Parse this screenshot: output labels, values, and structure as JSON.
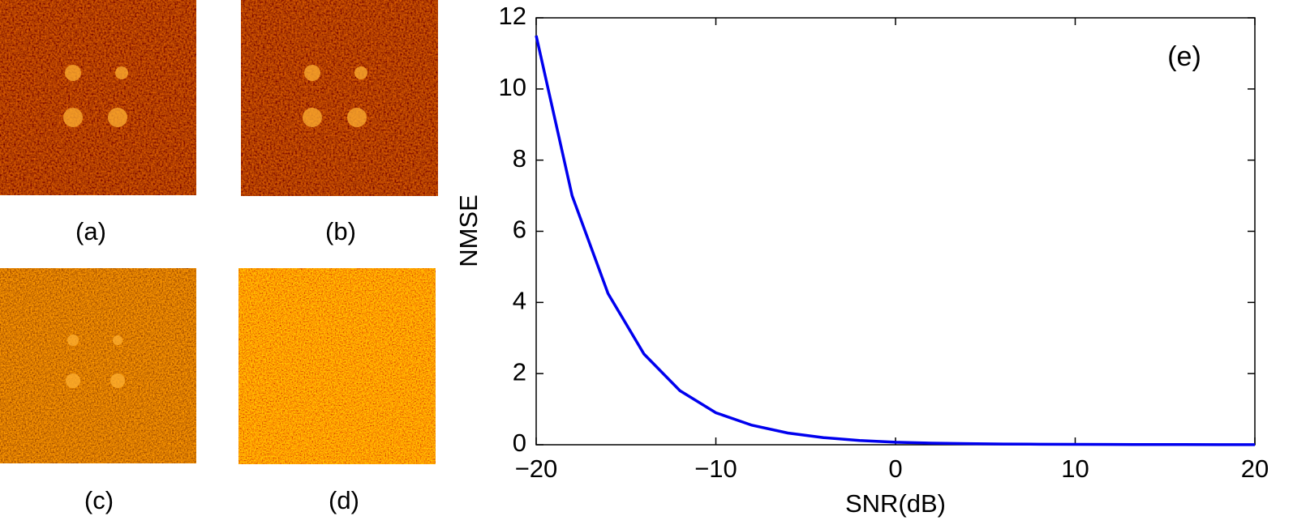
{
  "panels": [
    {
      "label": "(a)"
    },
    {
      "label": "(b)"
    },
    {
      "label": "(c)"
    },
    {
      "label": "(d)"
    }
  ],
  "chart_data": {
    "type": "line",
    "annotation": "(e)",
    "xlabel": "SNR(dB)",
    "ylabel": "NMSE",
    "x": [
      -20,
      -18,
      -16,
      -14,
      -12,
      -10,
      -8,
      -6,
      -4,
      -2,
      0,
      2,
      4,
      6,
      8,
      10,
      12,
      14,
      16,
      18,
      20
    ],
    "series": [
      {
        "name": "NMSE",
        "color": "#0000ee",
        "values": [
          11.5,
          7.0,
          4.25,
          2.55,
          1.52,
          0.9,
          0.55,
          0.33,
          0.2,
          0.12,
          0.07,
          0.045,
          0.03,
          0.02,
          0.015,
          0.01,
          0.008,
          0.006,
          0.005,
          0.004,
          0.003
        ]
      }
    ],
    "xlim": [
      -20,
      20
    ],
    "xticks": [
      {
        "value": -20,
        "label": "−20"
      },
      {
        "value": -10,
        "label": "−10"
      },
      0,
      10,
      20
    ],
    "ylim": [
      0,
      12
    ],
    "yticks": [
      0,
      2,
      4,
      6,
      8,
      10,
      12
    ]
  }
}
